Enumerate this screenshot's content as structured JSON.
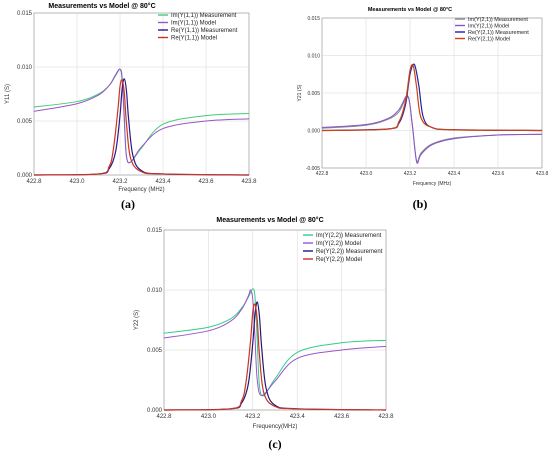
{
  "chart_data": [
    {
      "type": "line",
      "panel": "(a)",
      "title": "Measurements vs Model @ 80°C",
      "xlabel": "Frequency (MHz)",
      "ylabel": "Y11 (S)",
      "xlim": [
        422.8,
        423.8
      ],
      "ylim": [
        0,
        0.015
      ],
      "xticks": [
        "422.8",
        "423.0",
        "423.2",
        "423.4",
        "423.6",
        "423.8"
      ],
      "yticks": [
        "0.000",
        "0.005",
        "0.010",
        "0.015"
      ],
      "grid": true,
      "legend_position": "top-right",
      "series": [
        {
          "name": "Im(Y(1,1)) Measurement",
          "color": "#44cc77",
          "x": [
            422.8,
            423.0,
            423.1,
            423.15,
            423.18,
            423.2,
            423.21,
            423.22,
            423.23,
            423.25,
            423.3,
            423.4,
            423.6,
            423.8
          ],
          "y": [
            0.0063,
            0.0068,
            0.0075,
            0.0083,
            0.0092,
            0.0098,
            0.0091,
            0.0055,
            0.0018,
            0.0012,
            0.0025,
            0.0047,
            0.0055,
            0.0057
          ]
        },
        {
          "name": "Im(Y(1,1)) Model",
          "color": "#9955cc",
          "x": [
            422.8,
            423.0,
            423.1,
            423.15,
            423.18,
            423.2,
            423.21,
            423.22,
            423.23,
            423.25,
            423.3,
            423.4,
            423.6,
            423.8
          ],
          "y": [
            0.0059,
            0.0066,
            0.0074,
            0.0083,
            0.0093,
            0.0098,
            0.0088,
            0.005,
            0.0017,
            0.0012,
            0.0026,
            0.0043,
            0.005,
            0.0052
          ]
        },
        {
          "name": "Re(Y(1,1)) Measurement",
          "color": "#2a1a8a",
          "x": [
            422.8,
            423.1,
            423.15,
            423.18,
            423.2,
            423.21,
            423.22,
            423.23,
            423.24,
            423.26,
            423.3,
            423.4,
            423.8
          ],
          "y": [
            0.0,
            0.0001,
            0.0006,
            0.0022,
            0.0055,
            0.008,
            0.0089,
            0.0078,
            0.0052,
            0.0018,
            0.0004,
            0.0001,
            0.0
          ]
        },
        {
          "name": "Re(Y(1,1)) Model",
          "color": "#cc3322",
          "x": [
            422.8,
            423.1,
            423.15,
            423.17,
            423.19,
            423.2,
            423.21,
            423.22,
            423.23,
            423.25,
            423.3,
            423.4,
            423.8
          ],
          "y": [
            0.0,
            0.0001,
            0.0008,
            0.0025,
            0.006,
            0.0082,
            0.0088,
            0.0076,
            0.0048,
            0.0015,
            0.0003,
            0.0001,
            0.0
          ]
        }
      ]
    },
    {
      "type": "line",
      "panel": "(b)",
      "title": "Measurements vs Model @ 80°C",
      "xlabel": "Frequency (MHz)",
      "ylabel": "Y21 (S)",
      "xlim": [
        422.8,
        423.8
      ],
      "ylim": [
        -0.005,
        0.015
      ],
      "xticks": [
        "422.8",
        "423.0",
        "423.2",
        "423.4",
        "423.6",
        "423.8"
      ],
      "yticks": [
        "-0.005",
        "0.000",
        "0.005",
        "0.010",
        "0.015"
      ],
      "grid": true,
      "legend_position": "top-right",
      "series": [
        {
          "name": "Im(Y(2,1)) Measurement",
          "color": "#888888",
          "x": [
            422.8,
            423.0,
            423.1,
            423.15,
            423.19,
            423.21,
            423.23,
            423.25,
            423.3,
            423.4,
            423.6,
            423.8
          ],
          "y": [
            0.0003,
            0.0007,
            0.0015,
            0.0025,
            0.0045,
            0.001,
            -0.004,
            -0.003,
            -0.0018,
            -0.001,
            -0.0006,
            -0.0005
          ]
        },
        {
          "name": "Im(Y(2,1)) Model",
          "color": "#8855cc",
          "x": [
            422.8,
            423.0,
            423.1,
            423.15,
            423.19,
            423.21,
            423.23,
            423.25,
            423.3,
            423.4,
            423.6,
            423.8
          ],
          "y": [
            0.0004,
            0.0008,
            0.0016,
            0.0028,
            0.0046,
            0.0008,
            -0.0042,
            -0.0032,
            -0.0019,
            -0.0011,
            -0.0006,
            -0.0005
          ]
        },
        {
          "name": "Re(Y(2,1)) Measurement",
          "color": "#2222aa",
          "x": [
            422.8,
            423.1,
            423.15,
            423.18,
            423.2,
            423.22,
            423.24,
            423.26,
            423.3,
            423.4,
            423.8
          ],
          "y": [
            0.0,
            0.0002,
            0.001,
            0.0035,
            0.0075,
            0.0088,
            0.006,
            0.0018,
            0.0004,
            0.0001,
            0.0
          ]
        },
        {
          "name": "Re(Y(2,1)) Model",
          "color": "#cc4411",
          "x": [
            422.8,
            423.1,
            423.15,
            423.18,
            423.2,
            423.215,
            423.23,
            423.25,
            423.3,
            423.4,
            423.8
          ],
          "y": [
            0.0,
            0.0002,
            0.0012,
            0.004,
            0.008,
            0.0086,
            0.0058,
            0.0017,
            0.0004,
            0.0001,
            0.0
          ]
        }
      ]
    },
    {
      "type": "line",
      "panel": "(c)",
      "title": "Measurements vs Model @ 80°C",
      "xlabel": "Frequency(MHz)",
      "ylabel": "Y22 (S)",
      "xlim": [
        422.8,
        423.8
      ],
      "ylim": [
        0,
        0.015
      ],
      "xticks": [
        "422.8",
        "423.0",
        "423.2",
        "423.4",
        "423.6",
        "423.8"
      ],
      "yticks": [
        "0.000",
        "0.005",
        "0.010",
        "0.015"
      ],
      "grid": true,
      "legend_position": "top-right",
      "series": [
        {
          "name": "Im(Y(2,2)) Measurement",
          "color": "#33cc88",
          "x": [
            422.8,
            423.0,
            423.1,
            423.15,
            423.18,
            423.2,
            423.21,
            423.22,
            423.23,
            423.25,
            423.3,
            423.4,
            423.6,
            423.8
          ],
          "y": [
            0.0064,
            0.0069,
            0.0076,
            0.0085,
            0.0094,
            0.0101,
            0.0094,
            0.0058,
            0.002,
            0.0012,
            0.0026,
            0.0048,
            0.0056,
            0.0058
          ]
        },
        {
          "name": "Im(Y(2,2)) Model",
          "color": "#9955cc",
          "x": [
            422.8,
            423.0,
            423.1,
            423.15,
            423.18,
            423.19,
            423.2,
            423.21,
            423.22,
            423.24,
            423.3,
            423.4,
            423.6,
            423.8
          ],
          "y": [
            0.006,
            0.0066,
            0.0074,
            0.0084,
            0.0095,
            0.01,
            0.0092,
            0.006,
            0.0025,
            0.0012,
            0.0024,
            0.0043,
            0.005,
            0.0053
          ]
        },
        {
          "name": "Re(Y(2,2)) Measurement",
          "color": "#221a77",
          "x": [
            422.8,
            423.1,
            423.15,
            423.18,
            423.2,
            423.21,
            423.22,
            423.23,
            423.24,
            423.26,
            423.3,
            423.4,
            423.8
          ],
          "y": [
            0.0,
            0.0001,
            0.0006,
            0.0022,
            0.0056,
            0.008,
            0.009,
            0.0078,
            0.0052,
            0.0018,
            0.0004,
            0.0001,
            0.0
          ]
        },
        {
          "name": "Re(Y(2,2)) Model",
          "color": "#cc3322",
          "x": [
            422.8,
            423.1,
            423.15,
            423.17,
            423.19,
            423.2,
            423.21,
            423.22,
            423.23,
            423.25,
            423.3,
            423.4,
            423.8
          ],
          "y": [
            0.0,
            0.0001,
            0.0008,
            0.0024,
            0.0058,
            0.0082,
            0.0088,
            0.0075,
            0.0046,
            0.0014,
            0.0003,
            0.0001,
            0.0
          ]
        }
      ]
    }
  ],
  "captions": [
    "(a)",
    "(b)",
    "(c)"
  ]
}
